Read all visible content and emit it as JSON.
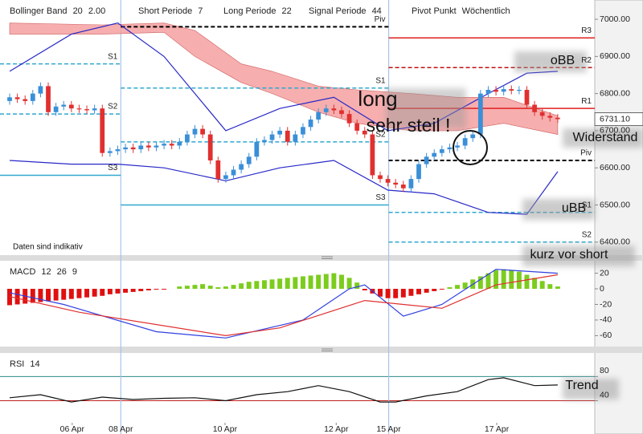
{
  "chart_data": [
    {
      "type": "candlestick",
      "header": [
        {
          "name": "Bollinger Band",
          "params": [
            "20",
            "2.00"
          ]
        },
        {
          "name": "Short Periode",
          "params": [
            "7"
          ]
        },
        {
          "name": "Long Periode",
          "params": [
            "22"
          ]
        },
        {
          "name": "Signal Periode",
          "params": [
            "44"
          ]
        },
        {
          "name": "Pivot Punkt",
          "params": [
            "Wöchentlich"
          ]
        }
      ],
      "annotations": [
        "long",
        "sehr steil !",
        "oBB",
        "Widerstand",
        "uBB",
        "kurz vor short",
        "Daten sind indikativ"
      ],
      "xlim": [
        -1.25,
        75.8
      ],
      "ylim": [
        6365,
        7052
      ],
      "yticks": [
        {
          "value": 6400,
          "label": "6400.00"
        },
        {
          "value": 6500,
          "label": "6500.00"
        },
        {
          "value": 6600,
          "label": "6600.00"
        },
        {
          "value": 6700,
          "label": "6700.00"
        },
        {
          "value": 6800,
          "label": "6800.00"
        },
        {
          "value": 6900,
          "label": "6900.00"
        },
        {
          "value": 7000,
          "label": "7000.00"
        }
      ],
      "up_color": "#3a8fd8",
      "down_color": "#e03030",
      "x": [
        0,
        1,
        2,
        3,
        4,
        5,
        6,
        7,
        8,
        9,
        10,
        11,
        12,
        13,
        14,
        15,
        16,
        17,
        18,
        19,
        20,
        21,
        22,
        23,
        24,
        25,
        26,
        27,
        28,
        29,
        30,
        31,
        32,
        33,
        34,
        35,
        36,
        37,
        38,
        39,
        40,
        41,
        42,
        43,
        44,
        45,
        46,
        47,
        48,
        49,
        50,
        51,
        52,
        53,
        54,
        55,
        56,
        57,
        58,
        59,
        60,
        61,
        62,
        63,
        64,
        65,
        66,
        67,
        68,
        69,
        70,
        71
      ],
      "open": [
        6780,
        6790,
        6785,
        6780,
        6800,
        6820,
        6750,
        6765,
        6770,
        6760,
        6758,
        6755,
        6760,
        6640,
        6645,
        6650,
        6655,
        6650,
        6660,
        6655,
        6660,
        6665,
        6660,
        6670,
        6690,
        6705,
        6690,
        6620,
        6570,
        6580,
        6595,
        6610,
        6630,
        6670,
        6675,
        6690,
        6700,
        6670,
        6690,
        6710,
        6730,
        6750,
        6760,
        6755,
        6745,
        6720,
        6700,
        6690,
        6580,
        6570,
        6560,
        6555,
        6545,
        6570,
        6610,
        6630,
        6640,
        6650,
        6655,
        6660,
        6680,
        6690,
        6800,
        6810,
        6805,
        6812,
        6808,
        6810,
        6770,
        6750,
        6740,
        6735
      ],
      "high": [
        6800,
        6800,
        6795,
        6810,
        6830,
        6830,
        6775,
        6780,
        6780,
        6770,
        6768,
        6770,
        6770,
        6655,
        6660,
        6665,
        6665,
        6670,
        6670,
        6670,
        6675,
        6675,
        6680,
        6700,
        6715,
        6715,
        6700,
        6630,
        6590,
        6605,
        6620,
        6640,
        6680,
        6685,
        6700,
        6710,
        6710,
        6700,
        6720,
        6740,
        6760,
        6770,
        6770,
        6765,
        6755,
        6730,
        6710,
        6700,
        6590,
        6580,
        6570,
        6565,
        6580,
        6620,
        6640,
        6650,
        6660,
        6665,
        6670,
        6690,
        6700,
        6810,
        6820,
        6820,
        6822,
        6822,
        6820,
        6820,
        6780,
        6760,
        6750,
        6745
      ],
      "low": [
        6770,
        6775,
        6770,
        6770,
        6790,
        6740,
        6740,
        6755,
        6750,
        6748,
        6745,
        6745,
        6630,
        6630,
        6635,
        6640,
        6640,
        6640,
        6645,
        6645,
        6650,
        6650,
        6650,
        6660,
        6680,
        6680,
        6610,
        6560,
        6560,
        6570,
        6585,
        6600,
        6620,
        6660,
        6665,
        6680,
        6660,
        6660,
        6680,
        6700,
        6720,
        6740,
        6745,
        6735,
        6710,
        6690,
        6680,
        6570,
        6560,
        6550,
        6545,
        6535,
        6535,
        6560,
        6600,
        6620,
        6630,
        6640,
        6645,
        6650,
        6670,
        6680,
        6790,
        6795,
        6795,
        6798,
        6798,
        6760,
        6740,
        6730,
        6725,
        6721
      ],
      "close": [
        6790,
        6785,
        6780,
        6800,
        6820,
        6750,
        6765,
        6770,
        6760,
        6758,
        6755,
        6760,
        6640,
        6645,
        6650,
        6655,
        6650,
        6660,
        6655,
        6660,
        6665,
        6660,
        6670,
        6690,
        6705,
        6690,
        6620,
        6570,
        6580,
        6595,
        6610,
        6630,
        6670,
        6675,
        6690,
        6700,
        6670,
        6690,
        6710,
        6730,
        6750,
        6760,
        6755,
        6745,
        6720,
        6700,
        6690,
        6580,
        6570,
        6560,
        6555,
        6545,
        6570,
        6610,
        6630,
        6640,
        6650,
        6655,
        6660,
        6680,
        6690,
        6800,
        6810,
        6805,
        6812,
        6808,
        6810,
        6770,
        6750,
        6740,
        6735,
        6731.1
      ],
      "last_value_label": "6731.10",
      "cloud": {
        "color": "#f4a0a0",
        "x": [
          0,
          12,
          20,
          24,
          30,
          34,
          40,
          45,
          52,
          58,
          64,
          71
        ],
        "top": [
          6990,
          6985,
          6990,
          6970,
          6880,
          6860,
          6820,
          6810,
          6800,
          6790,
          6790,
          6740
        ],
        "bottom": [
          6960,
          6960,
          6965,
          6900,
          6830,
          6800,
          6750,
          6720,
          6700,
          6700,
          6720,
          6690
        ]
      },
      "bollinger": {
        "color": "#2828c8",
        "x": [
          0,
          8,
          14,
          20,
          28,
          35,
          42,
          49,
          55,
          62,
          67,
          71
        ],
        "upper": [
          6860,
          6960,
          6990,
          6900,
          6700,
          6760,
          6790,
          6700,
          6720,
          6800,
          6855,
          6860
        ],
        "lower": [
          6620,
          6610,
          6610,
          6600,
          6565,
          6600,
          6620,
          6540,
          6530,
          6480,
          6475,
          6590
        ]
      },
      "pivots": [
        {
          "x": [
            -1.25,
            14.4
          ],
          "levels": [
            {
              "name": "S1",
              "value": 6880,
              "color": "#30a8d0",
              "dash": true
            },
            {
              "name": "S2",
              "value": 6745,
              "color": "#30a8d0",
              "dash": true
            },
            {
              "name": "S3",
              "value": 6580,
              "color": "#30a8d0",
              "dash": false
            }
          ]
        },
        {
          "x": [
            14.4,
            49.1
          ],
          "levels": [
            {
              "name": "Piv",
              "value": 6980,
              "color": "#000000",
              "dash": true
            },
            {
              "name": "S1",
              "value": 6815,
              "color": "#30a8d0",
              "dash": true
            },
            {
              "name": "S2",
              "value": 6670,
              "color": "#30a8d0",
              "dash": true
            },
            {
              "name": "S3",
              "value": 6500,
              "color": "#30a8d0",
              "dash": false
            }
          ]
        },
        {
          "x": [
            49.1,
            75.8
          ],
          "levels": [
            {
              "name": "R3",
              "value": 6950,
              "color": "#e02020",
              "dash": false
            },
            {
              "name": "R2",
              "value": 6870,
              "color": "#c01010",
              "dash": true
            },
            {
              "name": "R1",
              "value": 6760,
              "color": "#e02020",
              "dash": false
            },
            {
              "name": "Piv",
              "value": 6620,
              "color": "#000000",
              "dash": true
            },
            {
              "name": "S1",
              "value": 6480,
              "color": "#30a8d0",
              "dash": true
            },
            {
              "name": "S2",
              "value": 6400,
              "color": "#30a8d0",
              "dash": true
            }
          ]
        }
      ]
    },
    {
      "type": "bar",
      "header": [
        {
          "name": "MACD",
          "params": [
            "12",
            "26",
            "9"
          ]
        }
      ],
      "xlim": [
        -1.25,
        75.8
      ],
      "ylim": [
        -74,
        36
      ],
      "yticks": [
        20,
        0,
        -20,
        -40,
        -60
      ],
      "pos_color": "#7ccc1e",
      "neg_color": "#e01010",
      "x": [
        0,
        1,
        2,
        3,
        4,
        5,
        6,
        7,
        8,
        9,
        10,
        11,
        12,
        13,
        14,
        15,
        16,
        17,
        18,
        19,
        20,
        21,
        22,
        23,
        24,
        25,
        26,
        27,
        28,
        29,
        30,
        31,
        32,
        33,
        34,
        35,
        36,
        37,
        38,
        39,
        40,
        41,
        42,
        43,
        44,
        45,
        46,
        47,
        48,
        49,
        50,
        51,
        52,
        53,
        54,
        55,
        56,
        57,
        58,
        59,
        60,
        61,
        62,
        63,
        64,
        65,
        66,
        67,
        68,
        69,
        70,
        71
      ],
      "values": [
        -21,
        -20,
        -19,
        -18,
        -17,
        -16,
        -15,
        -14,
        -13,
        -12,
        -11,
        -10,
        -9,
        -7,
        -6,
        -5,
        -4,
        -3,
        -2,
        -1,
        -1,
        0,
        3,
        4,
        5,
        6,
        4,
        2,
        3,
        5,
        7,
        9,
        10,
        11,
        12,
        13,
        14,
        15,
        16,
        17,
        18,
        19,
        20,
        18,
        14,
        8,
        -2,
        -6,
        -10,
        -12,
        -12,
        -11,
        -9,
        -7,
        -5,
        -3,
        -1,
        2,
        5,
        8,
        12,
        16,
        20,
        24,
        25,
        24,
        22,
        18,
        14,
        10,
        6,
        3
      ],
      "lines": [
        {
          "color": "#3040e0",
          "x": [
            0,
            7,
            19,
            28,
            38,
            44,
            46,
            51,
            56,
            63,
            71
          ],
          "values": [
            -5,
            -20,
            -55,
            -63,
            -40,
            0,
            5,
            -35,
            -20,
            25,
            20
          ]
        },
        {
          "color": "#e03030",
          "x": [
            0,
            9,
            28,
            35,
            46,
            51,
            56,
            63,
            71
          ],
          "values": [
            -10,
            -30,
            -60,
            -50,
            -15,
            -20,
            -25,
            5,
            18
          ]
        }
      ]
    },
    {
      "type": "line",
      "header": [
        {
          "name": "RSI",
          "params": [
            "14"
          ]
        }
      ],
      "annotations": [
        "Trend"
      ],
      "xlim": [
        -1.25,
        75.8
      ],
      "ylim": [
        -15,
        119
      ],
      "yticks": [
        40,
        80
      ],
      "level_colors": [
        "#c02020",
        "#2a8a8a"
      ],
      "xticks": [
        {
          "value": 8.1,
          "label": "06 Apr",
          "highlight": false
        },
        {
          "value": 14.4,
          "label": "08 Apr",
          "highlight": true
        },
        {
          "value": 27.9,
          "label": "10 Apr",
          "highlight": false
        },
        {
          "value": 42.3,
          "label": "12 Apr",
          "highlight": false
        },
        {
          "value": 49.1,
          "label": "15 Apr",
          "highlight": true
        },
        {
          "value": 63.1,
          "label": "17 Apr",
          "highlight": false
        }
      ],
      "color": "#111111",
      "x": [
        0,
        4,
        8,
        12,
        16,
        20,
        24,
        28,
        32,
        36,
        40,
        44,
        48,
        50,
        54,
        58,
        62,
        64,
        68,
        71
      ],
      "values": [
        45,
        50,
        38,
        46,
        42,
        44,
        45,
        40,
        50,
        55,
        65,
        55,
        38,
        38,
        48,
        55,
        75,
        78,
        65,
        66
      ]
    }
  ]
}
